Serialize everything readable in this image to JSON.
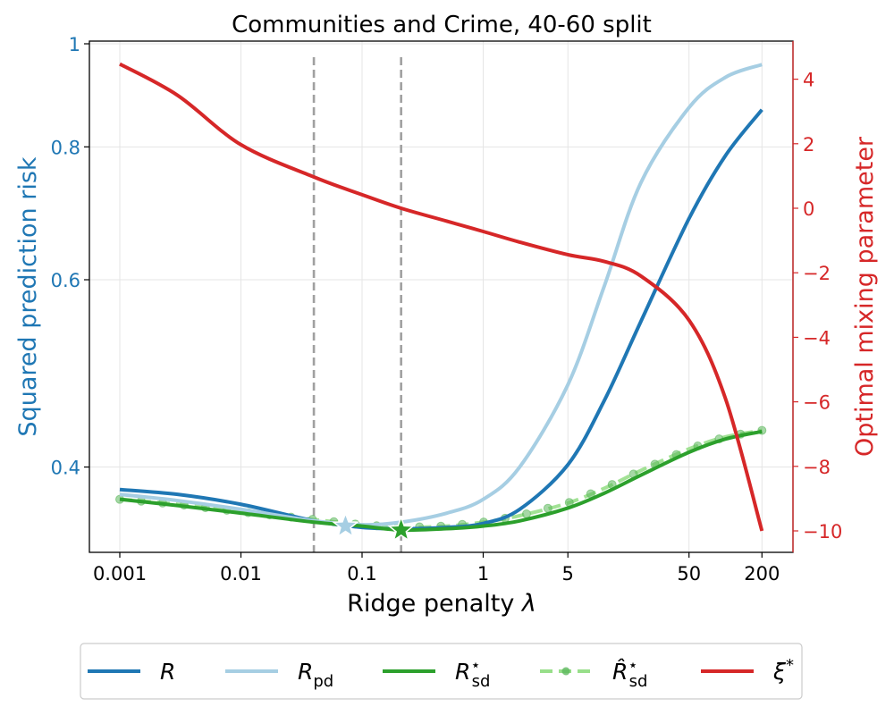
{
  "chart_data": {
    "type": "line",
    "title": "Communities and Crime, 40-60 split",
    "xlabel": "Ridge penalty λ",
    "ylabel": "Squared prediction risk",
    "y2label": "Optimal mixing parameter",
    "xscale": "log",
    "yscale": "log",
    "xlim": [
      0.00055,
      350
    ],
    "ylim": [
      0.335,
      1.0
    ],
    "y2lim": [
      -10.7,
      5.2
    ],
    "xticks": [
      0.001,
      0.01,
      0.1,
      1,
      5,
      50,
      200
    ],
    "xtick_labels": [
      "0.001",
      "0.01",
      "0.1",
      "1",
      "5",
      "50",
      "200"
    ],
    "yticks": [
      0.4,
      0.6,
      0.8,
      1
    ],
    "ytick_labels": [
      "0.4",
      "0.6",
      "0.8",
      "1"
    ],
    "y2ticks": [
      4,
      2,
      0,
      -2,
      -4,
      -6,
      -8,
      -10
    ],
    "y2tick_labels": [
      "4",
      "2",
      "0",
      "−2",
      "−4",
      "−6",
      "−8",
      "−10"
    ],
    "grid": true,
    "legend_position": "bottom, outside",
    "vlines": [
      0.04,
      0.21
    ],
    "x": [
      0.001,
      0.003,
      0.01,
      0.04,
      0.1,
      0.21,
      0.5,
      1,
      2,
      5,
      10,
      20,
      50,
      100,
      200
    ],
    "series": [
      {
        "name": "R",
        "color": "#1f77b4",
        "axis": "left",
        "style": "solid",
        "values": [
          0.381,
          0.377,
          0.369,
          0.356,
          0.351,
          0.35,
          0.351,
          0.354,
          0.365,
          0.402,
          0.462,
          0.548,
          0.685,
          0.785,
          0.867
        ]
      },
      {
        "name": "R_pd",
        "color": "#a6cee3",
        "axis": "left",
        "style": "solid",
        "values": [
          0.377,
          0.372,
          0.365,
          0.356,
          0.353,
          0.355,
          0.362,
          0.373,
          0.4,
          0.478,
          0.592,
          0.74,
          0.871,
          0.93,
          0.956
        ]
      },
      {
        "name": "R*_sd",
        "color": "#2ca02c",
        "axis": "left",
        "style": "solid",
        "values": [
          0.373,
          0.368,
          0.362,
          0.355,
          0.352,
          0.349,
          0.35,
          0.352,
          0.356,
          0.366,
          0.378,
          0.393,
          0.413,
          0.425,
          0.432
        ]
      },
      {
        "name": "R̂*_sd",
        "color": "#98df8a",
        "axis": "left",
        "style": "dashed-dots",
        "values": [
          0.373,
          0.369,
          0.363,
          0.357,
          0.353,
          0.351,
          0.352,
          0.355,
          0.36,
          0.37,
          0.382,
          0.397,
          0.416,
          0.427,
          0.433
        ]
      },
      {
        "name": "ξ*",
        "color": "#d62728",
        "axis": "right",
        "style": "solid",
        "values": [
          4.47,
          3.5,
          1.97,
          0.97,
          0.42,
          0.0,
          -0.4,
          -0.72,
          -1.05,
          -1.44,
          -1.65,
          -2.1,
          -3.47,
          -5.9,
          -10.0
        ]
      }
    ],
    "markers": [
      {
        "name": "R_pd minimum",
        "x": 0.073,
        "y": 0.352,
        "color": "#a6cee3",
        "shape": "star"
      },
      {
        "name": "R*_sd minimum",
        "x": 0.21,
        "y": 0.349,
        "color": "#2ca02c",
        "shape": "star"
      }
    ]
  },
  "legend": {
    "items": [
      {
        "label": "R",
        "sub": "",
        "sup": "",
        "color": "#1f77b4",
        "style": "solid"
      },
      {
        "label": "R",
        "sub": "pd",
        "sup": "",
        "color": "#a6cee3",
        "style": "solid"
      },
      {
        "label": "R",
        "sub": "sd",
        "sup": "⋆",
        "color": "#2ca02c",
        "style": "solid"
      },
      {
        "label": "R̂",
        "sub": "sd",
        "sup": "⋆",
        "color": "#98df8a",
        "style": "dashed-dots"
      },
      {
        "label": "ξ",
        "sub": "",
        "sup": "*",
        "color": "#d62728",
        "style": "solid"
      }
    ]
  },
  "colors": {
    "left_axis": "#1f77b4",
    "right_axis": "#d62728",
    "vline": "#a0a0a0",
    "grid": "#e5e5e5"
  }
}
